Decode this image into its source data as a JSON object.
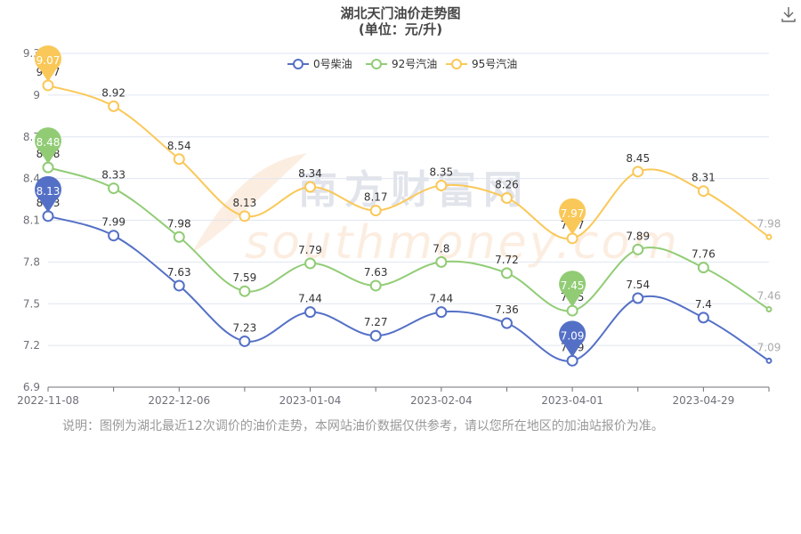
{
  "chart_data": {
    "type": "line",
    "title": "湖北天门油价走势图",
    "subtitle": "(单位：元/升)",
    "x": [
      "2022-11-08",
      "",
      "2022-12-06",
      "",
      "2023-01-04",
      "",
      "2023-02-04",
      "",
      "2023-04-01",
      "",
      "2023-04-29",
      ""
    ],
    "x_tick_labels": [
      "2022-11-08",
      "2022-12-06",
      "2023-01-04",
      "2023-02-04",
      "2023-04-01",
      "2023-04-29"
    ],
    "y_tick_labels": [
      "6.9",
      "7.2",
      "7.5",
      "7.8",
      "8.1",
      "8.4",
      "8.7",
      "9",
      "9.3"
    ],
    "ylim": [
      6.9,
      9.3
    ],
    "grid": true,
    "legend_position": "top-center",
    "series": [
      {
        "name": "0号柴油",
        "color": "#5470c6",
        "values": [
          8.13,
          7.99,
          7.63,
          7.23,
          7.44,
          7.27,
          7.44,
          7.36,
          7.09,
          7.54,
          7.4,
          7.09
        ],
        "max_label": "8.13",
        "min_label": "7.09"
      },
      {
        "name": "92号汽油",
        "color": "#91cc75",
        "values": [
          8.48,
          8.33,
          7.98,
          7.59,
          7.79,
          7.63,
          7.8,
          7.72,
          7.45,
          7.89,
          7.76,
          7.46
        ],
        "max_label": "8.48",
        "min_label": "7.45"
      },
      {
        "name": "95号汽油",
        "color": "#fac858",
        "values": [
          9.07,
          8.92,
          8.54,
          8.13,
          8.34,
          8.17,
          8.35,
          8.26,
          7.97,
          8.45,
          8.31,
          7.98
        ],
        "max_label": "9.07",
        "min_label": "7.97"
      }
    ]
  },
  "watermark": {
    "cn": "南方财富网",
    "en": "southmoney.com"
  },
  "note": "说明：图例为湖北最近12次调价的油价走势，本网站油价数据仅供参考，请以您所在地区的加油站报价为准。",
  "toolbar": {
    "download_icon": "download-icon"
  }
}
